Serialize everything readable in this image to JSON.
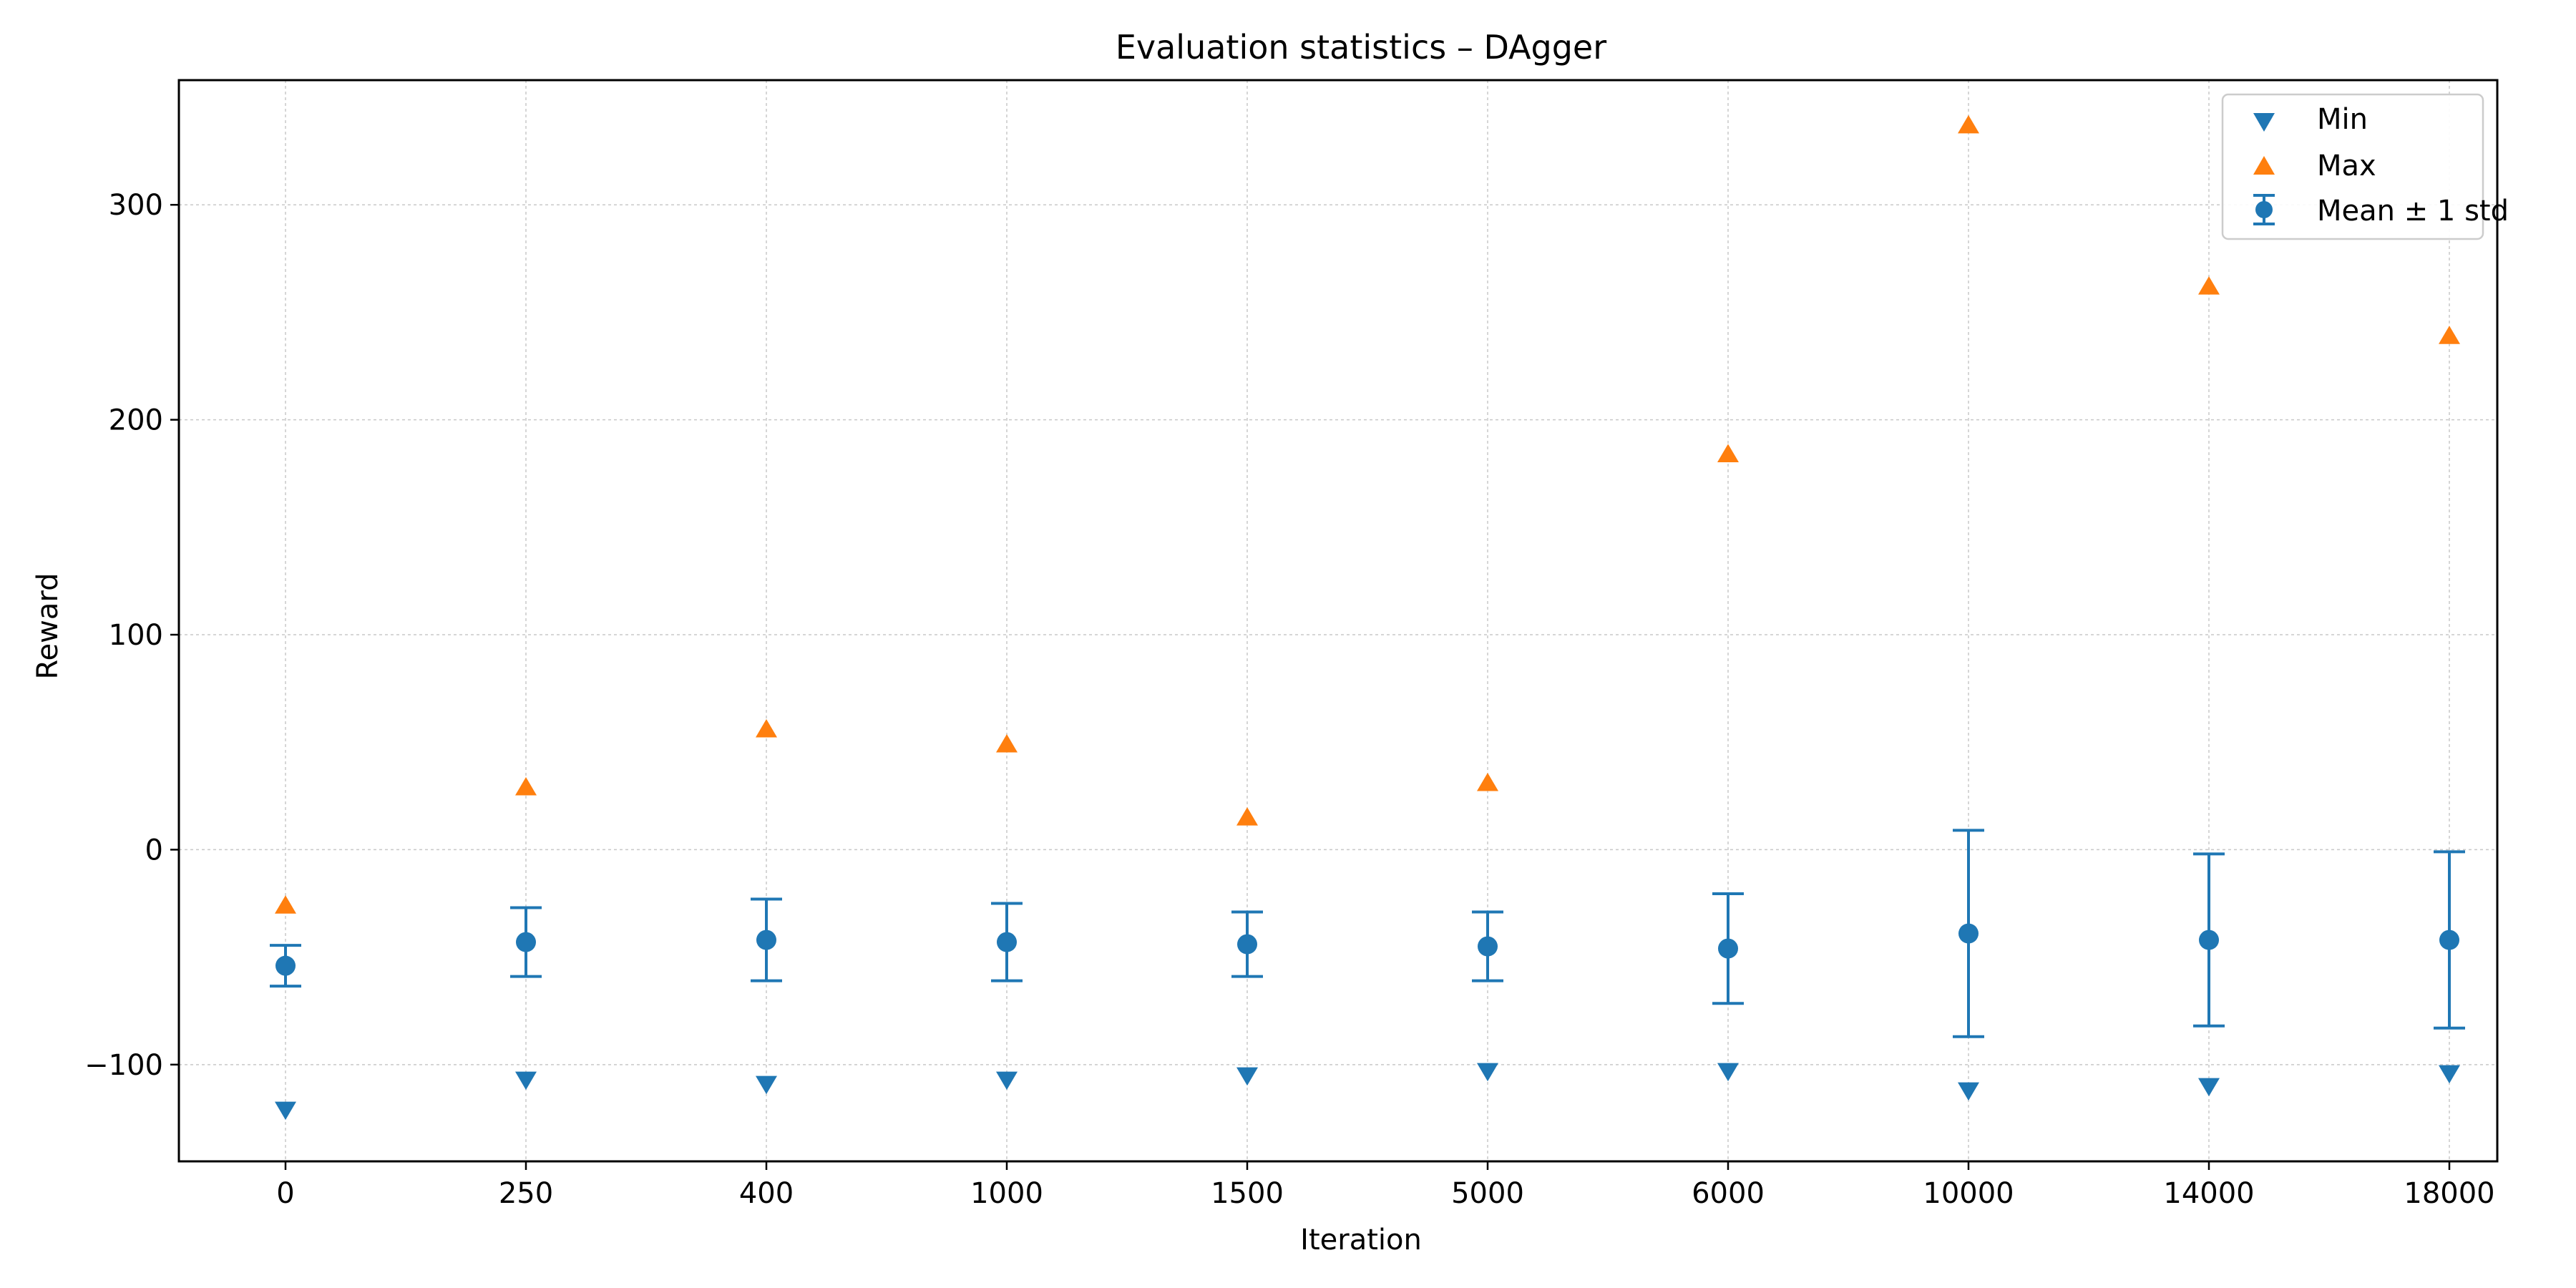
{
  "chart_data": {
    "type": "scatter",
    "title": "Evaluation statistics – DAgger",
    "xlabel": "Iteration",
    "ylabel": "Reward",
    "categories": [
      "0",
      "250",
      "400",
      "1000",
      "1500",
      "5000",
      "6000",
      "10000",
      "14000",
      "18000"
    ],
    "ylim": [
      -145,
      358
    ],
    "yticks": [
      -100,
      0,
      100,
      200,
      300
    ],
    "grid": true,
    "legend_position": "top-right",
    "series": [
      {
        "name": "Min",
        "marker": "triangle-down",
        "color": "#1f77b4",
        "values": [
          -121,
          -107,
          -109,
          -107,
          -105,
          -103,
          -103,
          -112,
          -110,
          -104
        ]
      },
      {
        "name": "Max",
        "marker": "triangle-up",
        "color": "#ff7f0e",
        "values": [
          -26,
          29,
          56,
          49,
          15,
          31,
          184,
          337,
          262,
          239
        ]
      },
      {
        "name": "Mean ± 1 std",
        "marker": "circle-errorbar",
        "color": "#1f77b4",
        "values": [
          -54,
          -43,
          -42,
          -43,
          -44,
          -45,
          -46,
          -39,
          -42,
          -42
        ],
        "std": [
          9.5,
          16,
          19,
          18,
          15,
          16,
          25.5,
          48,
          40,
          41
        ]
      }
    ]
  }
}
